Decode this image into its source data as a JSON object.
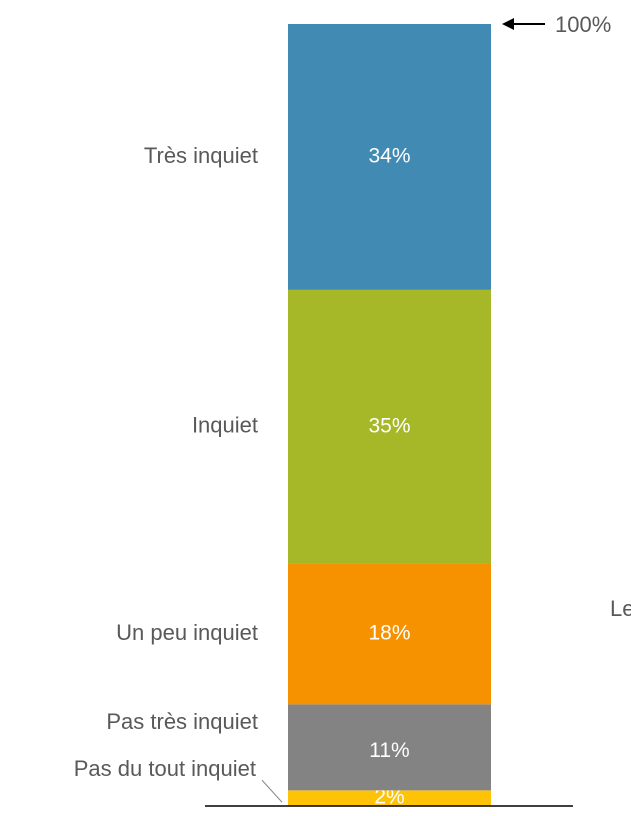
{
  "chart_data": {
    "type": "stacked_bar",
    "categories": [
      "Pas du tout inquiet",
      "Pas très inquiet",
      "Un peu inquiet",
      "Inquiet",
      "Très inquiet"
    ],
    "values": [
      2,
      11,
      18,
      35,
      34
    ],
    "value_labels": [
      "2%",
      "11%",
      "18%",
      "35%",
      "34%"
    ],
    "colors": [
      "#fec306",
      "#838383",
      "#f69200",
      "#a6b727",
      "#418ab3"
    ],
    "ylim": [
      0,
      100
    ],
    "total": {
      "value": 100,
      "label": "100%"
    },
    "annotation": "Le"
  }
}
